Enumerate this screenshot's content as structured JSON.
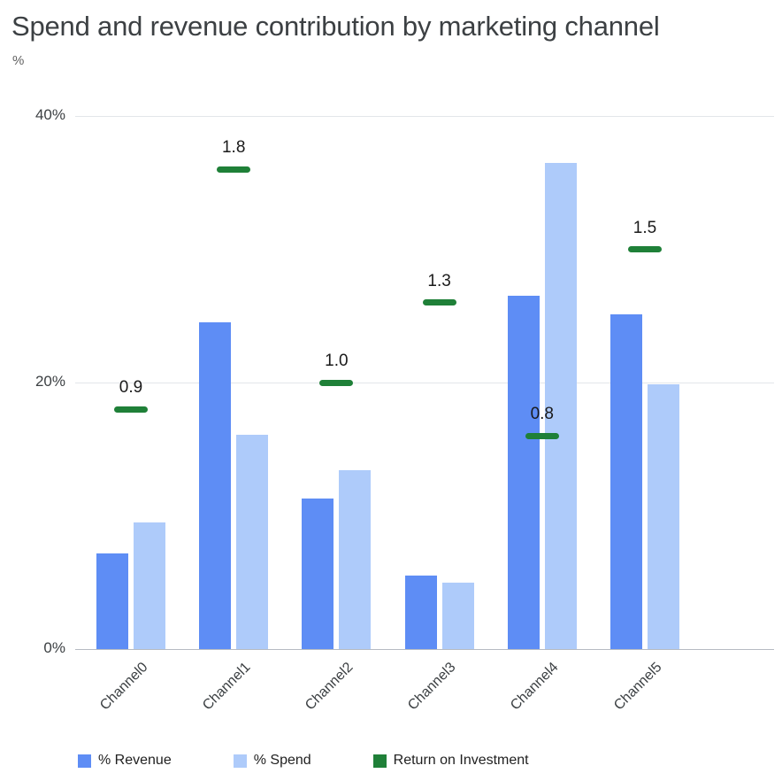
{
  "chart_data": {
    "type": "bar",
    "title": "Spend and revenue contribution by marketing channel",
    "ylabel": "%",
    "categories": [
      "Channel0",
      "Channel1",
      "Channel2",
      "Channel3",
      "Channel4",
      "Channel5"
    ],
    "series": [
      {
        "name": "% Revenue",
        "type": "bar",
        "color": "#5e8df5",
        "values": [
          7.2,
          24.5,
          11.3,
          5.5,
          26.5,
          25.1
        ]
      },
      {
        "name": "% Spend",
        "type": "bar",
        "color": "#aecbfa",
        "values": [
          9.5,
          16.1,
          13.4,
          5.0,
          36.5,
          19.9
        ]
      },
      {
        "name": "Return on Investment",
        "type": "dash-marker",
        "color": "#1f8038",
        "values": [
          0.9,
          1.8,
          1.0,
          1.3,
          0.8,
          1.5
        ],
        "value_labels": [
          "0.9",
          "1.8",
          "1.0",
          "1.3",
          "0.8",
          "1.5"
        ],
        "value_axis_multiplier": 20
      }
    ],
    "ylim": [
      0,
      40
    ],
    "yticks": [
      {
        "value": 0,
        "label": "0%"
      },
      {
        "value": 20,
        "label": "20%"
      },
      {
        "value": 40,
        "label": "40%"
      }
    ],
    "grid": true,
    "legend_position": "bottom"
  }
}
